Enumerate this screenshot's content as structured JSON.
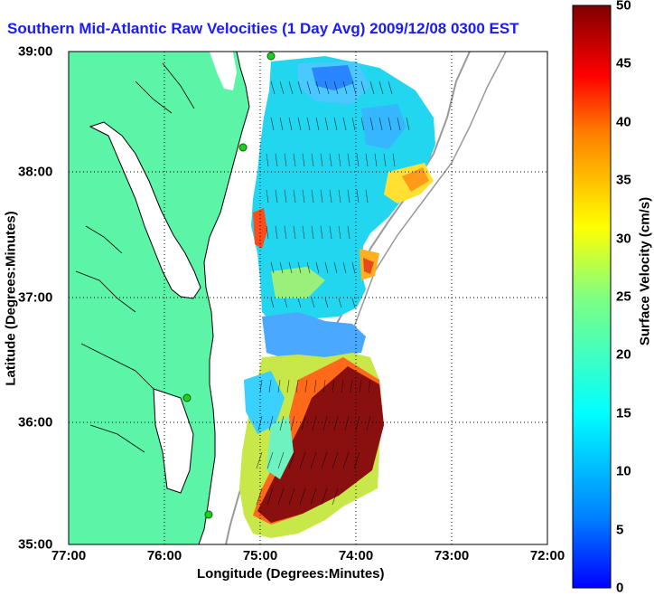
{
  "title": "Southern Mid-Atlantic Raw Velocities (1 Day Avg) 2009/12/08 0300 EST",
  "map": {
    "xlabel": "Longitude (Degrees:Minutes)",
    "ylabel": "Latitude (Degrees:Minutes)",
    "x_ticks": [
      "77:00",
      "76:00",
      "75:00",
      "74:00",
      "73:00",
      "72:00"
    ],
    "y_ticks": [
      "39:00",
      "38:00",
      "37:00",
      "36:00",
      "35:00"
    ],
    "grid": "dotted",
    "land_color": "#5cf5a8",
    "station_color": "#22cc22"
  },
  "colorbar": {
    "label": "Surface Velocity (cm/s)",
    "ticks": [
      "50",
      "45",
      "40",
      "35",
      "30",
      "25",
      "20",
      "15",
      "10",
      "5",
      "0"
    ],
    "range": [
      0,
      50
    ],
    "colormap": "jet"
  }
}
